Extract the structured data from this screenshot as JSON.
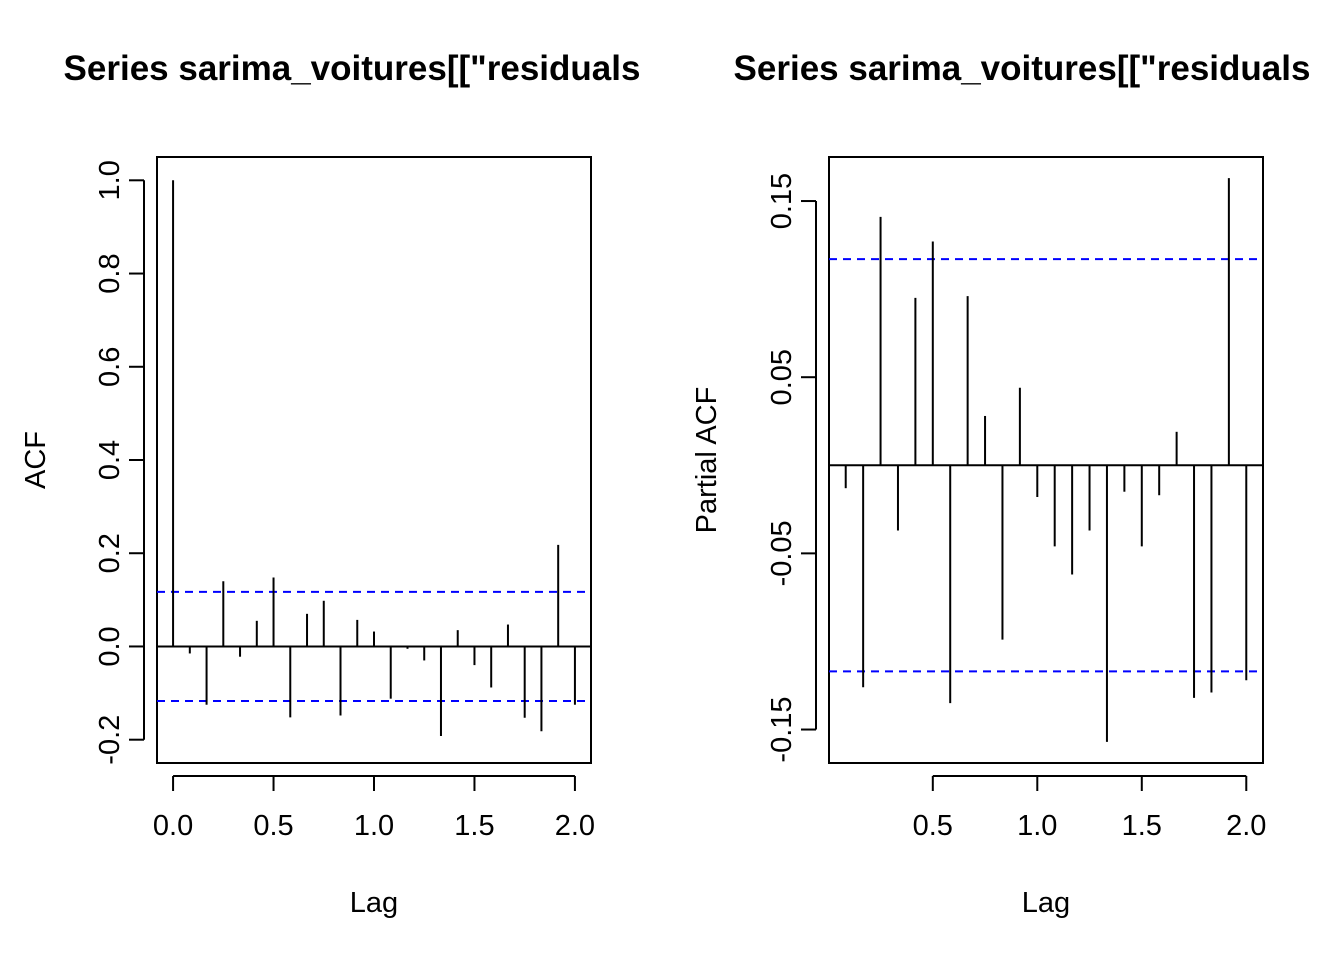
{
  "chart_data": [
    {
      "type": "bar",
      "title": "Series  sarima_voitures[[\"residuals",
      "xlabel": "Lag",
      "ylabel": "ACF",
      "xlim": [
        -0.08,
        2.08
      ],
      "ylim": [
        -0.25,
        1.05
      ],
      "x_ticks": [
        "0.0",
        "0.5",
        "1.0",
        "1.5",
        "2.0"
      ],
      "y_ticks": [
        "-0.2",
        "0.0",
        "0.2",
        "0.4",
        "0.6",
        "0.8",
        "1.0"
      ],
      "confidence_bound": 0.117,
      "zero_line": true,
      "x": [
        0.0,
        0.0833,
        0.1667,
        0.25,
        0.3333,
        0.4167,
        0.5,
        0.5833,
        0.6667,
        0.75,
        0.8333,
        0.9167,
        1.0,
        1.0833,
        1.1667,
        1.25,
        1.3333,
        1.4167,
        1.5,
        1.5833,
        1.6667,
        1.75,
        1.8333,
        1.9167,
        2.0
      ],
      "values": [
        1.0,
        -0.015,
        -0.125,
        0.14,
        -0.022,
        0.055,
        0.148,
        -0.152,
        0.07,
        0.098,
        -0.148,
        0.057,
        0.032,
        -0.112,
        -0.005,
        -0.03,
        -0.192,
        0.035,
        -0.04,
        -0.088,
        0.047,
        -0.153,
        -0.182,
        0.218,
        -0.125
      ]
    },
    {
      "type": "bar",
      "title": "Series  sarima_voitures[[\"residuals",
      "xlabel": "Lag",
      "ylabel": "Partial ACF",
      "xlim": [
        0.0033,
        2.08
      ],
      "ylim": [
        -0.169,
        0.175
      ],
      "x_ticks": [
        "0.5",
        "1.0",
        "1.5",
        "2.0"
      ],
      "y_ticks": [
        "-0.15",
        "-0.05",
        "0.05",
        "0.15"
      ],
      "confidence_bound": 0.117,
      "zero_line": true,
      "x": [
        0.0833,
        0.1667,
        0.25,
        0.3333,
        0.4167,
        0.5,
        0.5833,
        0.6667,
        0.75,
        0.8333,
        0.9167,
        1.0,
        1.0833,
        1.1667,
        1.25,
        1.3333,
        1.4167,
        1.5,
        1.5833,
        1.6667,
        1.75,
        1.8333,
        1.9167,
        2.0
      ],
      "values": [
        -0.013,
        -0.126,
        0.141,
        -0.037,
        0.095,
        0.127,
        -0.135,
        0.096,
        0.028,
        -0.099,
        0.044,
        -0.018,
        -0.046,
        -0.062,
        -0.037,
        -0.157,
        -0.015,
        -0.046,
        -0.017,
        0.019,
        -0.132,
        -0.129,
        0.163,
        -0.122
      ]
    }
  ]
}
